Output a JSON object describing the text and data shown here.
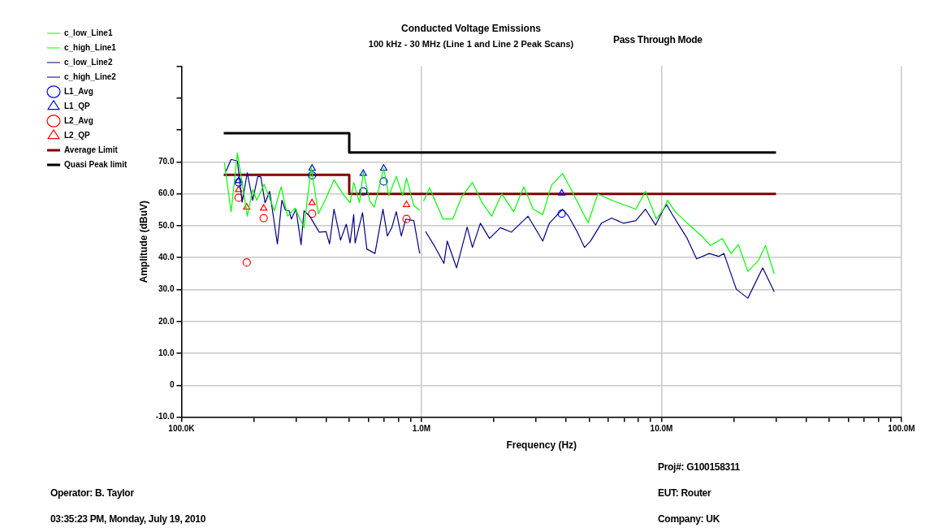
{
  "chart_data": {
    "type": "line",
    "title": "Conducted Voltage Emissions",
    "subtitle": "100 kHz - 30 MHz (Line 1 and Line 2 Peak Scans)",
    "xlabel": "Frequency (Hz)",
    "ylabel": "Amplitude (dBuV)",
    "annotations": [
      "Pass Through Mode",
      "Proj#: G100158311",
      "EUT: Router",
      "Company: UK",
      "Operator: B. Taylor",
      "03:35:23 PM, Monday, July 19, 2010"
    ],
    "log": "x",
    "xlim": [
      100000,
      100000000
    ],
    "xticks": [
      {
        "value": 100000,
        "label": "100.0K"
      },
      {
        "value": 200000,
        "label": null
      },
      {
        "value": 300000,
        "label": null
      },
      {
        "value": 400000,
        "label": null
      },
      {
        "value": 500000,
        "label": null
      },
      {
        "value": 600000,
        "label": null
      },
      {
        "value": 700000,
        "label": null
      },
      {
        "value": 800000,
        "label": null
      },
      {
        "value": 900000,
        "label": null
      },
      {
        "value": 1000000,
        "label": "1.0M"
      },
      {
        "value": 2000000,
        "label": null
      },
      {
        "value": 3000000,
        "label": null
      },
      {
        "value": 4000000,
        "label": null
      },
      {
        "value": 5000000,
        "label": null
      },
      {
        "value": 6000000,
        "label": null
      },
      {
        "value": 7000000,
        "label": null
      },
      {
        "value": 8000000,
        "label": null
      },
      {
        "value": 9000000,
        "label": null
      },
      {
        "value": 10000000,
        "label": "10.0M"
      },
      {
        "value": 20000000,
        "label": null
      },
      {
        "value": 30000000,
        "label": null
      },
      {
        "value": 40000000,
        "label": null
      },
      {
        "value": 50000000,
        "label": null
      },
      {
        "value": 60000000,
        "label": null
      },
      {
        "value": 70000000,
        "label": null
      },
      {
        "value": 80000000,
        "label": null
      },
      {
        "value": 90000000,
        "label": null
      },
      {
        "value": 100000000,
        "label": "100.0M"
      }
    ],
    "ylim": [
      -10,
      100
    ],
    "yticks": [
      {
        "value": -10,
        "label": "-10.0"
      },
      0,
      {
        "value": 10,
        "label": "10.0"
      },
      {
        "value": 20,
        "label": "20.0"
      },
      {
        "value": 30,
        "label": "30.0"
      },
      {
        "value": 40,
        "label": "40.0"
      },
      {
        "value": 50,
        "label": "50.0"
      },
      {
        "value": 60,
        "label": "60.0"
      },
      {
        "value": 70,
        "label": "70.0"
      },
      {
        "value": 80,
        "label": null
      },
      {
        "value": 90,
        "label": null
      },
      {
        "value": 100,
        "label": null
      }
    ],
    "grid": true,
    "legend": "top left",
    "marker": "none",
    "line_style": "solid",
    "series": [
      {
        "name": "c_low_Line1",
        "color": "#00ff00",
        "x": [
          151000,
          161000,
          171000,
          188000,
          198000,
          206000,
          221000,
          244000,
          260000,
          277000,
          297000,
          324000,
          347000,
          372000,
          400000,
          432000,
          470000,
          504000,
          522000,
          552000,
          572000,
          609000,
          636000,
          696000,
          731000,
          785000,
          836000,
          866000,
          929000,
          983000
        ],
        "values": [
          69.7,
          54.4,
          72.8,
          53.0,
          61.3,
          58.0,
          63.0,
          54.7,
          62.2,
          53.0,
          55.5,
          49.4,
          68.3,
          53.8,
          58.6,
          64.4,
          60.0,
          57.2,
          63.6,
          57.2,
          66.9,
          57.7,
          55.8,
          68.0,
          59.4,
          65.5,
          59.4,
          65.0,
          56.3,
          54.9
        ]
      },
      {
        "name": "c_high_Line1",
        "color": "#00ff00",
        "x": [
          1020000,
          1080000,
          1230000,
          1350000,
          1470000,
          1630000,
          1790000,
          1960000,
          2160000,
          2420000,
          2670000,
          2920000,
          3200000,
          3480000,
          3870000,
          4240000,
          4680000,
          4950000,
          5430000,
          6200000,
          7140000,
          7820000,
          8570000,
          9520000,
          10200000,
          10600000,
          11400000,
          12800000,
          14700000,
          16000000,
          17900000,
          19500000,
          20900000,
          22900000,
          25300000,
          27100000,
          29500000
        ],
        "values": [
          57.7,
          61.9,
          52.1,
          52.1,
          59.1,
          63.6,
          57.2,
          53.0,
          60.0,
          54.4,
          62.2,
          55.2,
          53.5,
          62.7,
          66.4,
          60.8,
          54.4,
          51.0,
          60.0,
          58.0,
          56.3,
          55.2,
          60.8,
          52.1,
          55.2,
          58.0,
          54.4,
          50.8,
          46.8,
          43.8,
          46.0,
          41.3,
          44.1,
          35.7,
          39.0,
          43.8,
          34.9
        ]
      },
      {
        "name": "c_low_Line2",
        "color": "#000080",
        "x": [
          153000,
          161000,
          171000,
          179000,
          188000,
          198000,
          208000,
          214000,
          223000,
          233000,
          251000,
          262000,
          271000,
          281000,
          287000,
          300000,
          315000,
          324000,
          342000,
          375000,
          400000,
          414000,
          432000,
          460000,
          486000,
          504000,
          522000,
          529000,
          568000,
          592000,
          640000,
          691000,
          721000,
          752000,
          785000,
          824000,
          860000,
          929000,
          983000
        ],
        "values": [
          66.9,
          70.8,
          70.3,
          57.4,
          66.6,
          58.0,
          65.5,
          65.3,
          57.2,
          60.8,
          44.3,
          58.0,
          54.9,
          54.7,
          52.1,
          55.2,
          44.1,
          54.7,
          53.0,
          48.0,
          48.2,
          44.3,
          55.2,
          45.5,
          50.5,
          44.6,
          53.5,
          44.6,
          54.1,
          42.7,
          41.3,
          55.2,
          46.8,
          49.4,
          54.4,
          46.8,
          52.1,
          51.6,
          41.3
        ]
      },
      {
        "name": "c_high_Line2",
        "color": "#000080",
        "x": [
          1040000,
          1130000,
          1240000,
          1280000,
          1400000,
          1550000,
          1630000,
          1760000,
          1920000,
          2130000,
          2370000,
          2590000,
          2780000,
          3200000,
          3410000,
          3870000,
          4100000,
          4460000,
          4780000,
          5060000,
          5620000,
          6200000,
          6940000,
          7820000,
          8570000,
          9450000,
          10200000,
          10500000,
          11100000,
          12800000,
          14000000,
          15800000,
          17300000,
          18200000,
          20500000,
          22900000,
          26400000,
          29500000
        ],
        "values": [
          48.2,
          43.8,
          38.2,
          45.2,
          36.8,
          49.6,
          43.2,
          50.8,
          46.0,
          49.4,
          48.0,
          50.8,
          53.0,
          45.2,
          50.8,
          55.2,
          53.0,
          48.0,
          43.2,
          45.2,
          50.8,
          52.4,
          50.8,
          51.6,
          55.2,
          50.2,
          55.2,
          56.6,
          53.5,
          46.0,
          39.6,
          41.3,
          40.4,
          41.3,
          30.1,
          27.3,
          36.8,
          29.3
        ]
      },
      {
        "name": "L1_Avg",
        "type": "scatter",
        "marker": "circle",
        "color": "#0000ff",
        "x": [
          173000,
          350000,
          572000,
          696000,
          3840000
        ],
        "values": [
          63.6,
          65.8,
          60.8,
          63.9,
          53.8
        ]
      },
      {
        "name": "L1_QP",
        "type": "scatter",
        "marker": "triangle",
        "color": "#0000ff",
        "x": [
          173000,
          350000,
          572000,
          696000,
          3840000
        ],
        "values": [
          64.1,
          68.0,
          66.4,
          68.0,
          60.2
        ]
      },
      {
        "name": "L2_Avg",
        "type": "scatter",
        "marker": "circle",
        "color": "#ff0000",
        "x": [
          173000,
          187000,
          220000,
          350000,
          866000
        ],
        "values": [
          58.8,
          38.5,
          52.4,
          53.8,
          52.1
        ]
      },
      {
        "name": "L2_QP",
        "type": "scatter",
        "marker": "triangle",
        "color": "#ff0000",
        "x": [
          173000,
          187000,
          220000,
          350000,
          866000
        ],
        "values": [
          61.3,
          55.8,
          55.5,
          57.2,
          56.6
        ]
      },
      {
        "name": "Average Limit",
        "color": "#800000",
        "x": [
          150000,
          500000,
          500000,
          30000000
        ],
        "values": [
          66,
          66,
          60,
          60
        ]
      },
      {
        "name": "Quasi Peak limit",
        "color": "#000000",
        "x": [
          150000,
          500000,
          500000,
          30000000
        ],
        "values": [
          79,
          79,
          73,
          73
        ]
      }
    ]
  }
}
